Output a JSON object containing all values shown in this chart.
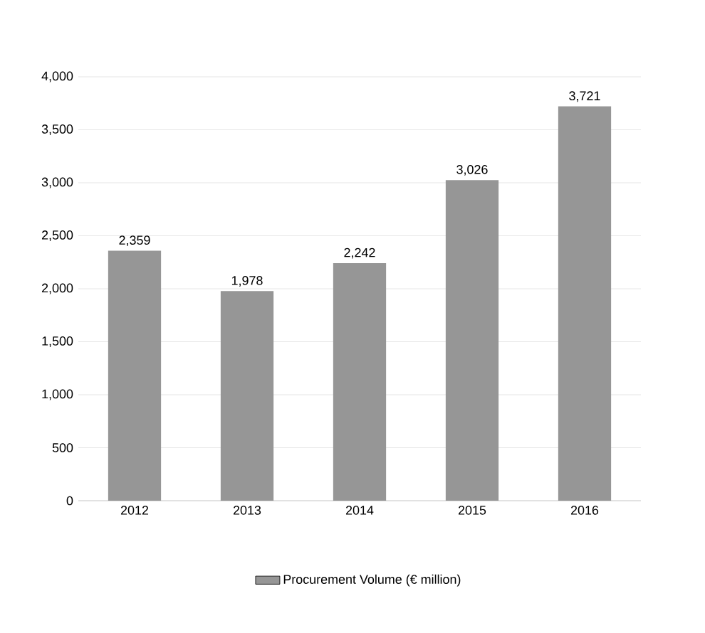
{
  "chart_data": {
    "type": "bar",
    "categories": [
      "2012",
      "2013",
      "2014",
      "2015",
      "2016"
    ],
    "series": [
      {
        "name": "Procurement Volume (€ million)",
        "color": "#969696",
        "values": [
          2359,
          1978,
          2242,
          3026,
          3721
        ],
        "value_labels": [
          "2,359",
          "1,978",
          "2,242",
          "3,026",
          "3,721"
        ]
      }
    ],
    "ylim": [
      0,
      4000
    ],
    "yticks": [
      {
        "value": 0,
        "label": "0"
      },
      {
        "value": 500,
        "label": "500"
      },
      {
        "value": 1000,
        "label": "1,000"
      },
      {
        "value": 1500,
        "label": "1,500"
      },
      {
        "value": 2000,
        "label": "2,000"
      },
      {
        "value": 2500,
        "label": "2,500"
      },
      {
        "value": 3000,
        "label": "3,000"
      },
      {
        "value": 3500,
        "label": "3,500"
      },
      {
        "value": 4000,
        "label": "4,000"
      }
    ],
    "grid": "y",
    "legend": "bottom"
  }
}
